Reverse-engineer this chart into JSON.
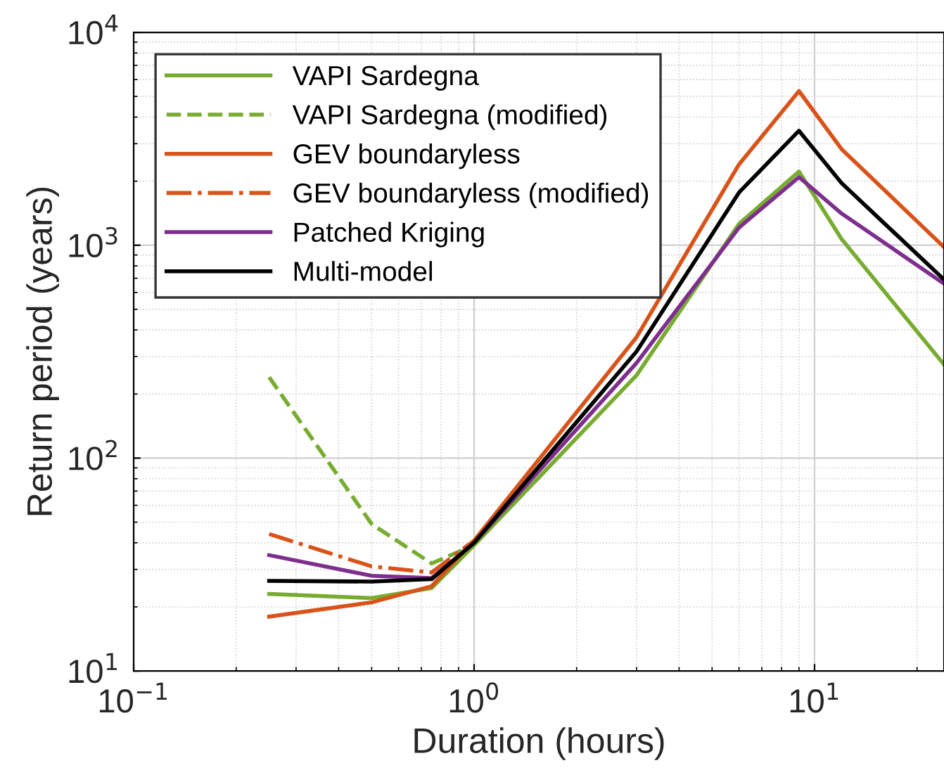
{
  "chart_data": {
    "type": "line",
    "xlabel": "Duration (hours)",
    "ylabel": "Return period (years)",
    "log": "xy",
    "grid": true,
    "legend": "top left",
    "xlim": [
      0.1,
      24
    ],
    "ylim": [
      10,
      10000
    ],
    "xticks": [
      {
        "value": 0.1,
        "label": "10$^{−1}$"
      },
      {
        "value": 1,
        "label": "10$^{0}$"
      },
      {
        "value": 10,
        "label": "10$^{1}$"
      }
    ],
    "yticks": [
      {
        "value": 10,
        "label": "10$^{1}$"
      },
      {
        "value": 100,
        "label": "10$^{2}$"
      },
      {
        "value": 1000,
        "label": "10$^{3}$"
      },
      {
        "value": 10000,
        "label": "10$^{4}$"
      }
    ],
    "series": [
      {
        "name": "VAPI Sardegna",
        "color": "#77ac30",
        "line_style": "solid",
        "x": [
          0.25,
          0.5,
          0.75,
          1,
          3,
          6,
          9,
          12,
          24
        ],
        "values": [
          23,
          22,
          24.5,
          39,
          245,
          1260,
          2220,
          1070,
          275
        ]
      },
      {
        "name": "VAPI Sardegna (modified)",
        "color": "#77ac30",
        "line_style": "dashed",
        "x": [
          0.25,
          0.5,
          0.75,
          1
        ],
        "values": [
          240,
          49,
          32,
          39
        ]
      },
      {
        "name": "GEV boundaryless",
        "color": "#d95319",
        "line_style": "solid",
        "x": [
          0.25,
          0.5,
          0.75,
          1,
          3,
          6,
          9,
          12,
          24
        ],
        "values": [
          18,
          21,
          25,
          41,
          370,
          2400,
          5300,
          2830,
          980
        ]
      },
      {
        "name": "GEV boundaryless (modified)",
        "color": "#d95319",
        "line_style": "dashdot",
        "x": [
          0.25,
          0.5,
          0.75,
          1
        ],
        "values": [
          44,
          31,
          29,
          41
        ]
      },
      {
        "name": "Patched Kriging",
        "color": "#7e2f8e",
        "line_style": "solid",
        "x": [
          0.25,
          0.5,
          0.75,
          1,
          3,
          6,
          9,
          12,
          24
        ],
        "values": [
          35,
          28,
          27.3,
          40,
          280,
          1210,
          2090,
          1410,
          660
        ]
      },
      {
        "name": "Multi-model",
        "color": "#000000",
        "line_style": "solid",
        "x": [
          0.25,
          0.5,
          0.75,
          1,
          3,
          6,
          9,
          12,
          24
        ],
        "values": [
          26.5,
          26.3,
          27,
          40,
          317,
          1770,
          3450,
          1960,
          690
        ]
      }
    ]
  }
}
